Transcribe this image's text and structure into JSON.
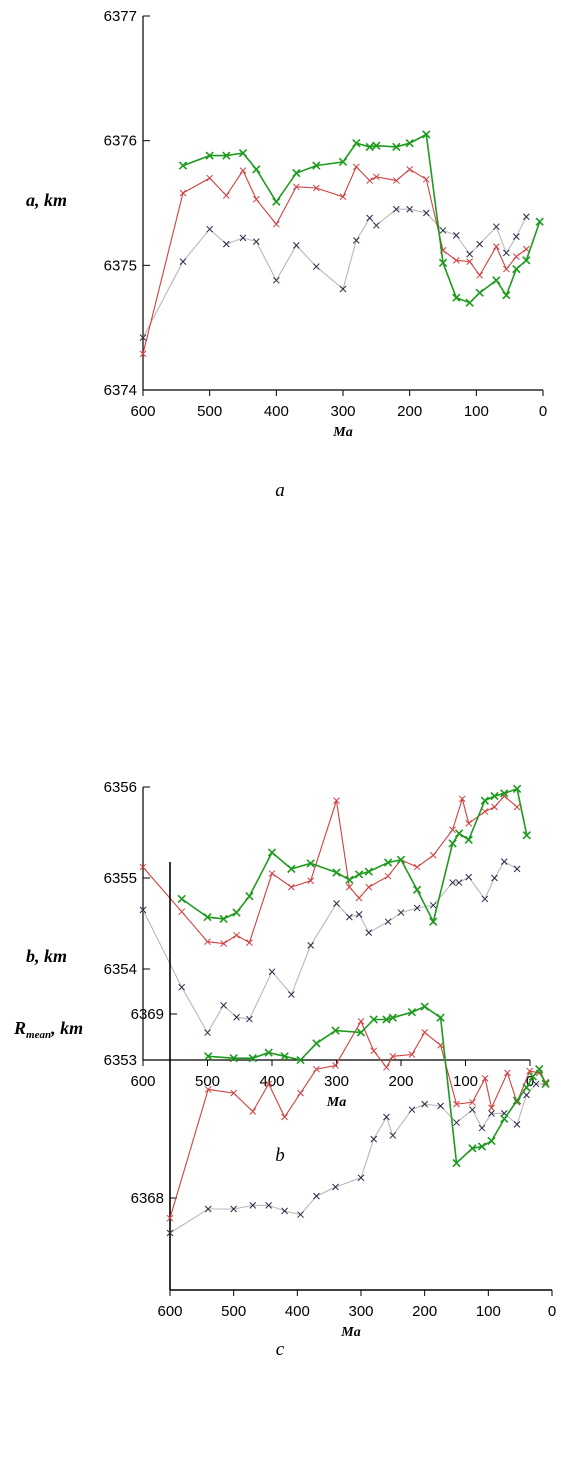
{
  "colors": {
    "gray": "#b8b8b8",
    "red": "#d04040",
    "green": "#1e9a1e",
    "axis": "#000000"
  },
  "chart_data": [
    {
      "type": "line",
      "panel": "a",
      "caption": "a",
      "xlabel": "Ma",
      "ylabel": {
        "main": "a, km",
        "sub": ""
      },
      "xlim": [
        600,
        0
      ],
      "ylim": [
        6374,
        6377
      ],
      "xticks": [
        "600",
        "500",
        "400",
        "300",
        "200",
        "100",
        "0"
      ],
      "yticks": [
        "6374",
        "6375",
        "6376",
        "6377"
      ],
      "series": [
        {
          "color": "gray",
          "marker": "dark",
          "points": [
            [
              600,
              6374.42
            ],
            [
              540,
              6375.03
            ],
            [
              500,
              6375.29
            ],
            [
              475,
              6375.17
            ],
            [
              450,
              6375.22
            ],
            [
              430,
              6375.19
            ],
            [
              400,
              6374.88
            ],
            [
              370,
              6375.16
            ],
            [
              340,
              6374.99
            ],
            [
              300,
              6374.81
            ],
            [
              280,
              6375.2
            ],
            [
              260,
              6375.38
            ],
            [
              250,
              6375.32
            ],
            [
              220,
              6375.45
            ],
            [
              200,
              6375.45
            ],
            [
              175,
              6375.42
            ],
            [
              150,
              6375.28
            ],
            [
              130,
              6375.24
            ],
            [
              110,
              6375.09
            ],
            [
              95,
              6375.17
            ],
            [
              70,
              6375.31
            ],
            [
              55,
              6375.1
            ],
            [
              40,
              6375.23
            ],
            [
              25,
              6375.39
            ]
          ]
        },
        {
          "color": "red",
          "marker": "red",
          "points": [
            [
              600,
              6374.29
            ],
            [
              540,
              6375.58
            ],
            [
              500,
              6375.7
            ],
            [
              475,
              6375.56
            ],
            [
              450,
              6375.76
            ],
            [
              430,
              6375.53
            ],
            [
              400,
              6375.33
            ],
            [
              370,
              6375.63
            ],
            [
              340,
              6375.62
            ],
            [
              300,
              6375.55
            ],
            [
              280,
              6375.79
            ],
            [
              260,
              6375.68
            ],
            [
              250,
              6375.71
            ],
            [
              220,
              6375.68
            ],
            [
              200,
              6375.77
            ],
            [
              175,
              6375.69
            ],
            [
              150,
              6375.12
            ],
            [
              130,
              6375.04
            ],
            [
              110,
              6375.03
            ],
            [
              95,
              6374.92
            ],
            [
              70,
              6375.15
            ],
            [
              55,
              6374.97
            ],
            [
              40,
              6375.07
            ],
            [
              25,
              6375.13
            ]
          ]
        },
        {
          "color": "green",
          "marker": "green",
          "points": [
            [
              540,
              6375.8
            ],
            [
              500,
              6375.88
            ],
            [
              475,
              6375.88
            ],
            [
              450,
              6375.9
            ],
            [
              430,
              6375.77
            ],
            [
              400,
              6375.51
            ],
            [
              370,
              6375.74
            ],
            [
              340,
              6375.8
            ],
            [
              300,
              6375.83
            ],
            [
              280,
              6375.98
            ],
            [
              260,
              6375.95
            ],
            [
              250,
              6375.96
            ],
            [
              220,
              6375.95
            ],
            [
              200,
              6375.98
            ],
            [
              175,
              6376.05
            ],
            [
              150,
              6375.02
            ],
            [
              130,
              6374.74
            ],
            [
              110,
              6374.7
            ],
            [
              95,
              6374.78
            ],
            [
              70,
              6374.88
            ],
            [
              55,
              6374.76
            ],
            [
              40,
              6374.97
            ],
            [
              25,
              6375.04
            ],
            [
              5,
              6375.35
            ]
          ]
        }
      ]
    },
    {
      "type": "line",
      "panel": "b",
      "caption": "b",
      "xlabel": "Ma",
      "ylabel": {
        "main": "b, km",
        "sub": ""
      },
      "xlim": [
        600,
        0
      ],
      "ylim": [
        6353,
        6356
      ],
      "xticks": [
        "600",
        "500",
        "400",
        "300",
        "200",
        "100",
        "0"
      ],
      "yticks": [
        "6353",
        "6354",
        "6355",
        "6356"
      ],
      "series": [
        {
          "color": "gray",
          "marker": "dark",
          "points": [
            [
              600,
              6354.65
            ],
            [
              540,
              6353.8
            ],
            [
              500,
              6353.3
            ],
            [
              475,
              6353.6
            ],
            [
              455,
              6353.47
            ],
            [
              435,
              6353.45
            ],
            [
              400,
              6353.97
            ],
            [
              370,
              6353.72
            ],
            [
              340,
              6354.26
            ],
            [
              300,
              6354.72
            ],
            [
              280,
              6354.57
            ],
            [
              265,
              6354.6
            ],
            [
              250,
              6354.4
            ],
            [
              220,
              6354.52
            ],
            [
              200,
              6354.62
            ],
            [
              175,
              6354.67
            ],
            [
              150,
              6354.7
            ],
            [
              120,
              6354.95
            ],
            [
              110,
              6354.95
            ],
            [
              95,
              6355.01
            ],
            [
              70,
              6354.77
            ],
            [
              55,
              6355.0
            ],
            [
              40,
              6355.18
            ],
            [
              20,
              6355.1
            ]
          ]
        },
        {
          "color": "red",
          "marker": "red",
          "points": [
            [
              600,
              6355.12
            ],
            [
              540,
              6354.63
            ],
            [
              500,
              6354.3
            ],
            [
              475,
              6354.28
            ],
            [
              455,
              6354.37
            ],
            [
              435,
              6354.29
            ],
            [
              400,
              6355.05
            ],
            [
              370,
              6354.9
            ],
            [
              340,
              6354.97
            ],
            [
              300,
              6355.85
            ],
            [
              280,
              6354.9
            ],
            [
              265,
              6354.78
            ],
            [
              250,
              6354.9
            ],
            [
              220,
              6355.02
            ],
            [
              200,
              6355.2
            ],
            [
              175,
              6355.12
            ],
            [
              150,
              6355.25
            ],
            [
              120,
              6355.53
            ],
            [
              105,
              6355.87
            ],
            [
              95,
              6355.6
            ],
            [
              70,
              6355.73
            ],
            [
              55,
              6355.78
            ],
            [
              40,
              6355.9
            ],
            [
              20,
              6355.78
            ]
          ]
        },
        {
          "color": "green",
          "marker": "green",
          "points": [
            [
              540,
              6354.77
            ],
            [
              500,
              6354.57
            ],
            [
              475,
              6354.55
            ],
            [
              455,
              6354.62
            ],
            [
              435,
              6354.8
            ],
            [
              400,
              6355.28
            ],
            [
              370,
              6355.1
            ],
            [
              340,
              6355.16
            ],
            [
              300,
              6355.06
            ],
            [
              280,
              6354.98
            ],
            [
              265,
              6355.04
            ],
            [
              250,
              6355.07
            ],
            [
              220,
              6355.17
            ],
            [
              200,
              6355.2
            ],
            [
              175,
              6354.87
            ],
            [
              150,
              6354.52
            ],
            [
              120,
              6355.38
            ],
            [
              110,
              6355.49
            ],
            [
              95,
              6355.42
            ],
            [
              70,
              6355.85
            ],
            [
              55,
              6355.9
            ],
            [
              40,
              6355.93
            ],
            [
              20,
              6355.98
            ],
            [
              5,
              6355.47
            ]
          ]
        }
      ]
    },
    {
      "type": "line",
      "panel": "c",
      "caption": "c",
      "xlabel": "Ma",
      "ylabel": {
        "main": "R",
        "sub": "mean",
        "tail": ", km"
      },
      "xlim": [
        600,
        0
      ],
      "ylim": [
        6367.5,
        6369.55
      ],
      "xticks": [
        "600",
        "500",
        "400",
        "300",
        "200",
        "100",
        "0"
      ],
      "yticks": [
        "6368",
        "6369"
      ],
      "series": [
        {
          "color": "gray",
          "marker": "dark",
          "points": [
            [
              600,
              6367.81
            ],
            [
              540,
              6367.94
            ],
            [
              500,
              6367.94
            ],
            [
              470,
              6367.96
            ],
            [
              445,
              6367.96
            ],
            [
              420,
              6367.93
            ],
            [
              395,
              6367.91
            ],
            [
              370,
              6368.01
            ],
            [
              340,
              6368.06
            ],
            [
              300,
              6368.11
            ],
            [
              280,
              6368.32
            ],
            [
              260,
              6368.44
            ],
            [
              250,
              6368.34
            ],
            [
              220,
              6368.48
            ],
            [
              200,
              6368.51
            ],
            [
              175,
              6368.5
            ],
            [
              150,
              6368.41
            ],
            [
              125,
              6368.48
            ],
            [
              110,
              6368.38
            ],
            [
              95,
              6368.46
            ],
            [
              75,
              6368.46
            ],
            [
              55,
              6368.4
            ],
            [
              40,
              6368.56
            ],
            [
              25,
              6368.62
            ],
            [
              10,
              6368.62
            ]
          ]
        },
        {
          "color": "red",
          "marker": "red",
          "points": [
            [
              600,
              6367.89
            ],
            [
              540,
              6368.59
            ],
            [
              500,
              6368.57
            ],
            [
              470,
              6368.47
            ],
            [
              445,
              6368.62
            ],
            [
              420,
              6368.44
            ],
            [
              395,
              6368.57
            ],
            [
              370,
              6368.7
            ],
            [
              340,
              6368.72
            ],
            [
              300,
              6368.96
            ],
            [
              280,
              6368.8
            ],
            [
              260,
              6368.71
            ],
            [
              250,
              6368.77
            ],
            [
              220,
              6368.78
            ],
            [
              200,
              6368.9
            ],
            [
              175,
              6368.83
            ],
            [
              150,
              6368.51
            ],
            [
              125,
              6368.52
            ],
            [
              105,
              6368.65
            ],
            [
              95,
              6368.49
            ],
            [
              70,
              6368.68
            ],
            [
              55,
              6368.52
            ],
            [
              35,
              6368.69
            ],
            [
              20,
              6368.68
            ],
            [
              10,
              6368.63
            ]
          ]
        },
        {
          "color": "green",
          "marker": "green",
          "points": [
            [
              540,
              6368.77
            ],
            [
              500,
              6368.76
            ],
            [
              470,
              6368.76
            ],
            [
              445,
              6368.79
            ],
            [
              420,
              6368.77
            ],
            [
              395,
              6368.75
            ],
            [
              370,
              6368.84
            ],
            [
              340,
              6368.91
            ],
            [
              300,
              6368.9
            ],
            [
              280,
              6368.97
            ],
            [
              260,
              6368.97
            ],
            [
              250,
              6368.98
            ],
            [
              220,
              6369.01
            ],
            [
              200,
              6369.04
            ],
            [
              175,
              6368.98
            ],
            [
              150,
              6368.19
            ],
            [
              125,
              6368.27
            ],
            [
              110,
              6368.28
            ],
            [
              95,
              6368.31
            ],
            [
              75,
              6368.43
            ],
            [
              55,
              6368.53
            ],
            [
              40,
              6368.6
            ],
            [
              30,
              6368.66
            ],
            [
              20,
              6368.7
            ],
            [
              10,
              6368.62
            ]
          ]
        }
      ]
    }
  ]
}
